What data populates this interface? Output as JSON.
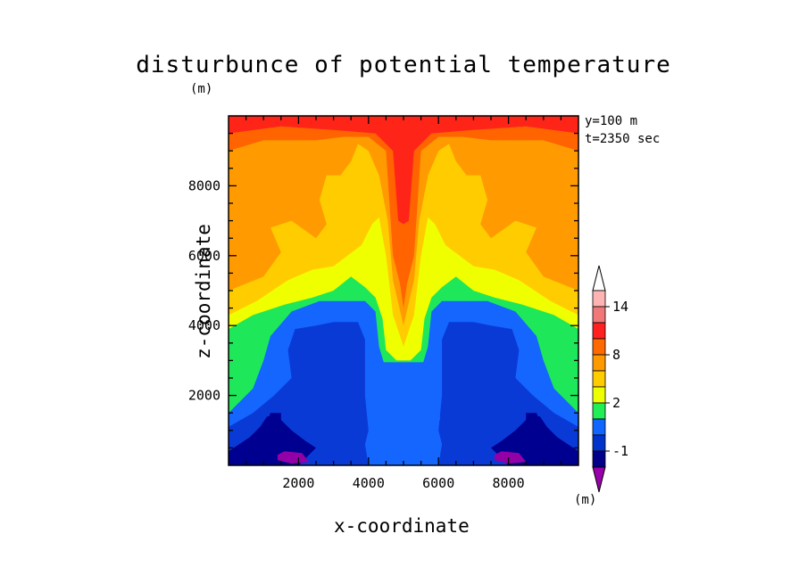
{
  "chart_data": {
    "type": "heatmap",
    "title": "disturbunce of potential temperature",
    "y_unit_label": "(m)",
    "annotation_lines": [
      "y=100 m",
      "t=2350 sec"
    ],
    "xlabel": "x-coordinate",
    "ylabel": "z-coordinate",
    "xlim": [
      0,
      10000
    ],
    "ylim": [
      0,
      10000
    ],
    "x_ticks": [
      2000,
      4000,
      6000,
      8000
    ],
    "y_ticks": [
      2000,
      4000,
      6000,
      8000
    ],
    "x_tick_labels": [
      "2000",
      "4000",
      "6000",
      "8000"
    ],
    "y_tick_labels": [
      "2000",
      "4000",
      "6000",
      "8000"
    ],
    "colorbar": {
      "unit_label": "(m)",
      "tick_labels": [
        "14",
        "8",
        "2",
        "-1"
      ],
      "levels_top_to_bottom": [
        {
          "color": "#ffb4b4"
        },
        {
          "color": "#f07878"
        },
        {
          "color": "#ff2020"
        },
        {
          "color": "#ff6a00"
        },
        {
          "color": "#ff9900"
        },
        {
          "color": "#ffcc00"
        },
        {
          "color": "#eeff00"
        },
        {
          "color": "#22ee55"
        },
        {
          "color": "#1166ff"
        },
        {
          "color": "#0033cc"
        },
        {
          "color": "#000088"
        },
        {
          "color": "#9900aa"
        }
      ]
    },
    "field_description_levels": {
      "purple": "#9400a8",
      "navy": "#000090",
      "blue_dark": "#0a3ad6",
      "blue_mid": "#1565ff",
      "green": "#1ee85a",
      "yellow": "#f0ff00",
      "gold": "#ffcc00",
      "orange": "#ff9a00",
      "dark_orange": "#ff6400",
      "red": "#ff2418"
    }
  }
}
